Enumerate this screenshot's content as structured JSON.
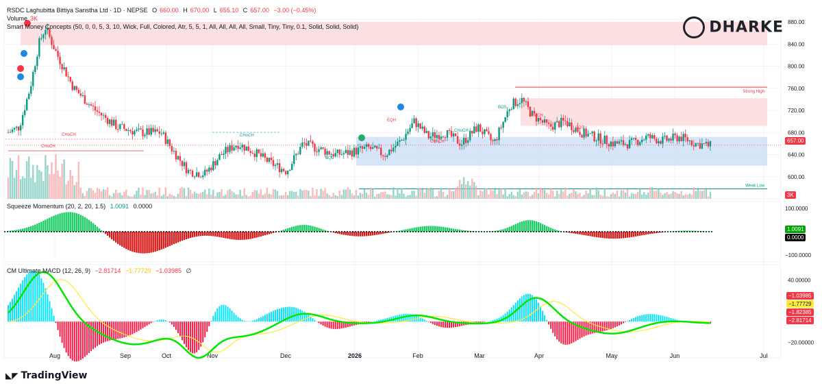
{
  "header": {
    "symbol": "RSDC Laghubitta Bittiya Sanstha Ltd · 1D · NEPSE",
    "ohlc": {
      "o_label": "O",
      "o": "660.00",
      "h_label": "H",
      "h": "670.00",
      "l_label": "L",
      "l": "655.10",
      "c_label": "C",
      "c": "657.00",
      "chg": "−3.00 (−0.45%)"
    },
    "volume_label": "Volume",
    "volume_value": "3K",
    "smc_label": "Smart Money Concepts (50, 0, 0, 5, 3, 10, Wick, Full, Colored, Atr, 5, 5, 1, All, All, All, All, Small, Tiny, Tiny, 0.1, Solid, Solid, Solid)"
  },
  "brand": {
    "logo_text": "DHARKE",
    "footer_text": "TradingView"
  },
  "colors": {
    "up": "#089981",
    "down": "#f23645",
    "ob_red": "#fbd5d8",
    "ob_blue": "#c9dcf7",
    "grid": "#f0f3fa",
    "axis_text": "#131722",
    "mom_green": "#00c853",
    "mom_red": "#d50000",
    "macd_line": "#00e600",
    "signal_line": "#ffeb3b",
    "hist_aqua": "#00e5ff",
    "hist_blue": "#1a1aff",
    "hist_red": "#ff1744",
    "hist_maroon": "#880e4f"
  },
  "chart_data": [
    {
      "type": "candlestick",
      "title": "RSDC Laghubitta Bittiya Sanstha Ltd · 1D · NEPSE",
      "ylim": [
        560,
        885
      ],
      "y_ticks": [
        560,
        600,
        640,
        680,
        720,
        760,
        800,
        840,
        880
      ],
      "y_tick_labels": [
        "",
        "600.00",
        "640.00",
        "680.00",
        "720.00",
        "760.00",
        "800.00",
        "840.00",
        "880.00"
      ],
      "x_tick_labels": [
        "Aug",
        "Sep",
        "Oct",
        "Nov",
        "Dec",
        "2026",
        "Feb",
        "Mar",
        "Apr",
        "May",
        "Jun",
        "Jul"
      ],
      "last_price": "657.00",
      "volume_tag": "3K",
      "annotations": [
        "CHoCH",
        "CHoCH",
        "CHoCH",
        "EQH",
        "EQL",
        "CHoCH",
        "CHoCH",
        "BOS",
        "CHoCH",
        "BOS",
        "Strong High",
        "Weak Low"
      ],
      "zones": [
        {
          "kind": "supply",
          "from": 838,
          "to": 880
        },
        {
          "kind": "supply",
          "from": 692,
          "to": 742
        },
        {
          "kind": "demand",
          "from": 620,
          "to": 672
        }
      ],
      "levels": [
        {
          "label": "Strong High",
          "value": 762
        },
        {
          "label": "Weak Low",
          "value": 578
        }
      ]
    },
    {
      "type": "histogram",
      "title": "Squeeze Momentum (20, 2, 20, 1.5)",
      "values_label": [
        "1.0091",
        "0.0000"
      ],
      "y_tick_labels": [
        "100.0000",
        "−100.0000"
      ],
      "ylim": [
        -130,
        130
      ]
    },
    {
      "type": "line",
      "title": "CM Ultimate MACD (12, 26, 9)",
      "values_label": [
        "−2.81714",
        "−1.77729",
        "−1.03985"
      ],
      "y_tick_labels": [
        "40.00000",
        "−20.00000"
      ],
      "right_tags": [
        "−1.03985",
        "−1.77729",
        "−1.82385",
        "−2.81714"
      ],
      "ylim": [
        -35,
        55
      ]
    }
  ]
}
